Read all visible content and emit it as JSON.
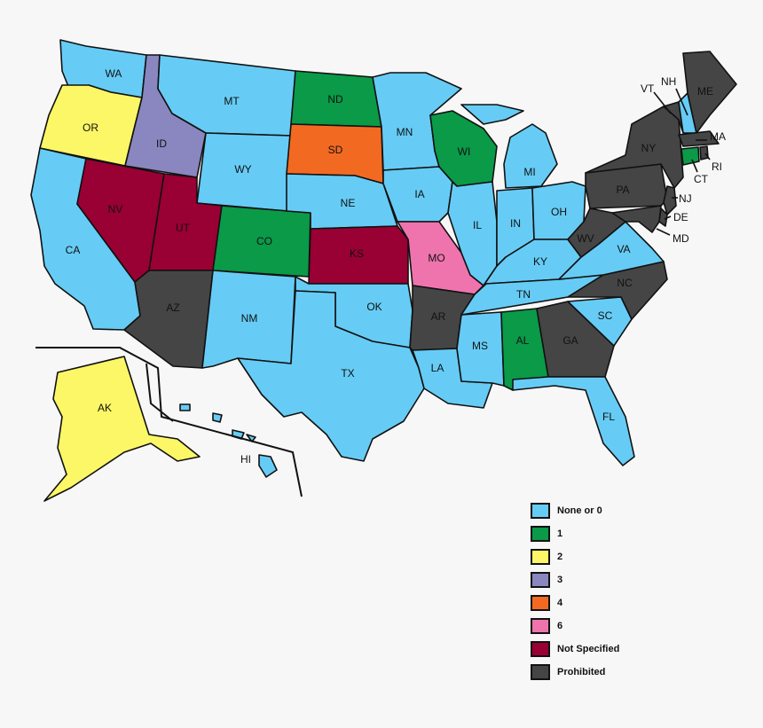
{
  "colors": {
    "none": "#66ccf5",
    "c1": "#0a9a48",
    "c2": "#fcf766",
    "c3": "#8a86c0",
    "c4": "#f26a22",
    "c6": "#ef74ad",
    "ns": "#990033",
    "pro": "#454545"
  },
  "legend": [
    {
      "key": "none",
      "label": "None or 0"
    },
    {
      "key": "c1",
      "label": "1"
    },
    {
      "key": "c2",
      "label": "2"
    },
    {
      "key": "c3",
      "label": "3"
    },
    {
      "key": "c4",
      "label": "4"
    },
    {
      "key": "c6",
      "label": "6"
    },
    {
      "key": "ns",
      "label": "Not Specified"
    },
    {
      "key": "pro",
      "label": "Prohibited"
    }
  ],
  "states": {
    "WA": {
      "label": "WA",
      "cat": "none"
    },
    "OR": {
      "label": "OR",
      "cat": "c2"
    },
    "CA": {
      "label": "CA",
      "cat": "none"
    },
    "ID": {
      "label": "ID",
      "cat": "c3"
    },
    "NV": {
      "label": "NV",
      "cat": "ns"
    },
    "MT": {
      "label": "MT",
      "cat": "none"
    },
    "WY": {
      "label": "WY",
      "cat": "none"
    },
    "UT": {
      "label": "UT",
      "cat": "ns"
    },
    "AZ": {
      "label": "AZ",
      "cat": "pro"
    },
    "CO": {
      "label": "CO",
      "cat": "c1"
    },
    "NM": {
      "label": "NM",
      "cat": "none"
    },
    "ND": {
      "label": "ND",
      "cat": "c1"
    },
    "SD": {
      "label": "SD",
      "cat": "c4"
    },
    "NE": {
      "label": "NE",
      "cat": "none"
    },
    "KS": {
      "label": "KS",
      "cat": "ns"
    },
    "OK": {
      "label": "OK",
      "cat": "none"
    },
    "TX": {
      "label": "TX",
      "cat": "none"
    },
    "MN": {
      "label": "MN",
      "cat": "none"
    },
    "IA": {
      "label": "IA",
      "cat": "none"
    },
    "MO": {
      "label": "MO",
      "cat": "c6"
    },
    "AR": {
      "label": "AR",
      "cat": "pro"
    },
    "LA": {
      "label": "LA",
      "cat": "none"
    },
    "WI": {
      "label": "WI",
      "cat": "c1"
    },
    "IL": {
      "label": "IL",
      "cat": "none"
    },
    "MS": {
      "label": "MS",
      "cat": "none"
    },
    "MI": {
      "label": "MI",
      "cat": "none"
    },
    "IN": {
      "label": "IN",
      "cat": "none"
    },
    "KY": {
      "label": "KY",
      "cat": "none"
    },
    "TN": {
      "label": "TN",
      "cat": "none"
    },
    "AL": {
      "label": "AL",
      "cat": "c1"
    },
    "OH": {
      "label": "OH",
      "cat": "none"
    },
    "WV": {
      "label": "WV",
      "cat": "pro"
    },
    "VA": {
      "label": "VA",
      "cat": "none"
    },
    "NC": {
      "label": "NC",
      "cat": "pro"
    },
    "SC": {
      "label": "SC",
      "cat": "none"
    },
    "GA": {
      "label": "GA",
      "cat": "pro"
    },
    "FL": {
      "label": "FL",
      "cat": "none"
    },
    "PA": {
      "label": "PA",
      "cat": "pro"
    },
    "NY": {
      "label": "NY",
      "cat": "pro"
    },
    "VT": {
      "label": "VT",
      "cat": "pro"
    },
    "NH": {
      "label": "NH",
      "cat": "none"
    },
    "ME": {
      "label": "ME",
      "cat": "pro"
    },
    "MA": {
      "label": "MA",
      "cat": "pro"
    },
    "RI": {
      "label": "RI",
      "cat": "pro"
    },
    "CT": {
      "label": "CT",
      "cat": "c1"
    },
    "NJ": {
      "label": "NJ",
      "cat": "pro"
    },
    "DE": {
      "label": "DE",
      "cat": "pro"
    },
    "MD": {
      "label": "MD",
      "cat": "pro"
    },
    "AK": {
      "label": "AK",
      "cat": "c2"
    },
    "HI": {
      "label": "HI",
      "cat": "none"
    }
  }
}
